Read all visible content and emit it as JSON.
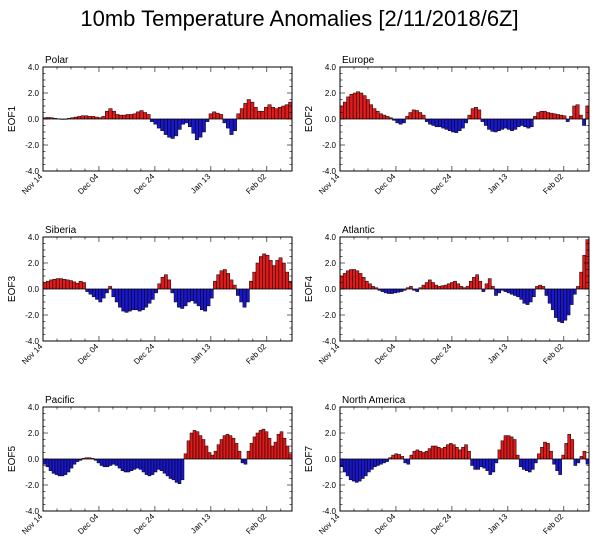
{
  "title": "10mb Temperature Anomalies [2/11/2018/6Z]",
  "colors": {
    "positive": "#e01b1b",
    "negative": "#1a17c8",
    "axis": "#000000"
  },
  "chart_data": [
    {
      "type": "bar",
      "title": "Polar",
      "ylabel": "EOF1",
      "ylim": [
        -4,
        4
      ],
      "yticks": [
        "4.0",
        "2.0",
        "0.0",
        "-2.0",
        "-4.0"
      ],
      "xticks": [
        "Nov 14",
        "Dec 04",
        "Dec 24",
        "Jan 13",
        "Feb 02"
      ],
      "values": [
        0.1,
        0.12,
        0.1,
        0.05,
        0.02,
        0.0,
        0.0,
        0.05,
        0.1,
        0.15,
        0.2,
        0.25,
        0.25,
        0.2,
        0.2,
        0.15,
        0.1,
        0.2,
        0.6,
        0.8,
        0.6,
        0.35,
        0.3,
        0.3,
        0.35,
        0.35,
        0.4,
        0.55,
        0.65,
        0.5,
        0.35,
        -0.2,
        -0.4,
        -0.7,
        -0.9,
        -1.2,
        -1.4,
        -1.5,
        -1.3,
        -0.8,
        -0.4,
        -0.3,
        -0.6,
        -1.1,
        -1.6,
        -1.4,
        -1.0,
        -0.2,
        0.4,
        0.55,
        0.45,
        0.35,
        -0.3,
        -0.7,
        -1.2,
        -0.9,
        0.4,
        0.8,
        1.2,
        1.5,
        1.3,
        0.9,
        0.6,
        0.6,
        0.9,
        1.1,
        0.9,
        0.8,
        0.9,
        1.0,
        1.1,
        1.3
      ]
    },
    {
      "type": "bar",
      "title": "Europe",
      "ylabel": "EOF2",
      "ylim": [
        -4,
        4
      ],
      "yticks": [
        "4.0",
        "2.0",
        "0.0",
        "-2.0",
        "-4.0"
      ],
      "xticks": [
        "Nov 14",
        "Dec 04",
        "Dec 24",
        "Jan 13",
        "Feb 02"
      ],
      "values": [
        1.0,
        1.3,
        1.7,
        1.9,
        2.0,
        2.1,
        2.0,
        1.8,
        1.5,
        1.1,
        0.8,
        0.6,
        0.4,
        0.3,
        0.2,
        0.1,
        -0.1,
        -0.3,
        -0.4,
        -0.3,
        0.2,
        0.5,
        0.7,
        0.65,
        0.5,
        0.3,
        -0.2,
        -0.4,
        -0.5,
        -0.6,
        -0.6,
        -0.7,
        -0.8,
        -0.9,
        -1.0,
        -1.05,
        -0.9,
        -0.7,
        -0.3,
        0.3,
        0.8,
        0.9,
        0.7,
        -0.2,
        -0.5,
        -0.8,
        -0.95,
        -1.0,
        -0.9,
        -0.8,
        -0.7,
        -0.8,
        -0.9,
        -0.8,
        -0.6,
        -0.5,
        -0.6,
        -0.7,
        -0.6,
        0.2,
        0.5,
        0.6,
        0.6,
        0.5,
        0.45,
        0.4,
        0.35,
        0.3,
        0.25,
        -0.2,
        0.2,
        1.0,
        1.1,
        0.3,
        -0.5,
        1.0
      ]
    },
    {
      "type": "bar",
      "title": "Siberia",
      "ylabel": "EOF3",
      "ylim": [
        -4,
        4
      ],
      "yticks": [
        "4.0",
        "2.0",
        "0.0",
        "-2.0",
        "-4.0"
      ],
      "xticks": [
        "Nov 14",
        "Dec 04",
        "Dec 24",
        "Jan 13",
        "Feb 02"
      ],
      "values": [
        0.5,
        0.6,
        0.7,
        0.75,
        0.8,
        0.8,
        0.75,
        0.7,
        0.65,
        0.55,
        0.45,
        0.6,
        0.5,
        -0.2,
        -0.4,
        -0.6,
        -0.8,
        -1.0,
        -0.7,
        -0.3,
        0.2,
        -0.6,
        -1.0,
        -1.4,
        -1.7,
        -1.8,
        -1.7,
        -1.6,
        -1.6,
        -1.7,
        -1.6,
        -1.4,
        -1.1,
        -0.8,
        -0.3,
        0.4,
        0.9,
        1.1,
        0.7,
        -0.3,
        -1.0,
        -1.4,
        -1.5,
        -1.3,
        -1.0,
        -0.9,
        -1.1,
        -1.3,
        -1.6,
        -1.7,
        -1.3,
        -0.7,
        0.6,
        1.1,
        1.4,
        1.5,
        1.2,
        0.7,
        0.3,
        -0.5,
        -1.0,
        -1.4,
        -1.0,
        0.6,
        1.3,
        2.0,
        2.5,
        2.7,
        2.6,
        2.2,
        1.8,
        2.2,
        2.4,
        2.0,
        1.3,
        0.6
      ]
    },
    {
      "type": "bar",
      "title": "Atlantic",
      "ylabel": "EOF4",
      "ylim": [
        -4,
        4
      ],
      "yticks": [
        "4.0",
        "2.0",
        "0.0",
        "-2.0",
        "-4.0"
      ],
      "xticks": [
        "Nov 14",
        "Dec 04",
        "Dec 24",
        "Jan 13",
        "Feb 02"
      ],
      "values": [
        1.0,
        1.2,
        1.4,
        1.5,
        1.5,
        1.4,
        1.2,
        0.9,
        0.6,
        0.4,
        0.2,
        0.1,
        -0.1,
        -0.2,
        -0.3,
        -0.35,
        -0.35,
        -0.3,
        -0.25,
        -0.2,
        -0.1,
        0.1,
        0.2,
        -0.1,
        -0.2,
        0.1,
        0.3,
        0.5,
        0.7,
        0.5,
        0.3,
        0.2,
        0.25,
        0.3,
        0.4,
        0.5,
        0.6,
        0.4,
        0.2,
        0.1,
        0.2,
        0.6,
        0.9,
        1.1,
        0.6,
        -0.2,
        0.4,
        0.8,
        0.2,
        -0.5,
        -0.3,
        -0.1,
        -0.2,
        -0.3,
        -0.4,
        -0.5,
        -0.6,
        -0.8,
        -1.1,
        -1.2,
        -1.0,
        -0.6,
        0.2,
        0.3,
        0.2,
        -0.5,
        -1.1,
        -1.6,
        -2.2,
        -2.5,
        -2.6,
        -2.4,
        -2.0,
        -1.2,
        -0.4,
        0.2,
        1.3,
        2.6,
        3.8
      ]
    },
    {
      "type": "bar",
      "title": "Pacific",
      "ylabel": "EOF5",
      "ylim": [
        -4,
        4
      ],
      "yticks": [
        "4.0",
        "2.0",
        "0.0",
        "-2.0",
        "-4.0"
      ],
      "xticks": [
        "Nov 14",
        "Dec 04",
        "Dec 24",
        "Jan 13",
        "Feb 02"
      ],
      "values": [
        -0.4,
        -0.6,
        -0.9,
        -1.1,
        -1.2,
        -1.3,
        -1.3,
        -1.2,
        -1.0,
        -0.7,
        -0.4,
        -0.2,
        -0.1,
        0.05,
        0.1,
        0.1,
        0.05,
        -0.1,
        -0.3,
        -0.5,
        -0.6,
        -0.6,
        -0.5,
        -0.4,
        -0.5,
        -0.7,
        -0.9,
        -1.0,
        -1.0,
        -0.9,
        -0.8,
        -0.7,
        -0.8,
        -1.0,
        -1.2,
        -1.3,
        -1.2,
        -1.0,
        -0.8,
        -0.9,
        -1.1,
        -1.3,
        -1.5,
        -1.6,
        -1.8,
        -1.9,
        -1.6,
        0.4,
        1.4,
        2.0,
        2.2,
        2.1,
        1.8,
        1.5,
        1.0,
        0.5,
        0.3,
        0.6,
        1.1,
        1.5,
        1.8,
        1.9,
        1.8,
        1.6,
        1.2,
        0.6,
        -0.3,
        -0.4,
        0.6,
        1.2,
        1.7,
        2.0,
        2.2,
        2.3,
        2.1,
        1.6,
        1.0,
        1.3,
        1.9,
        2.1,
        1.6,
        1.0,
        0.4
      ]
    },
    {
      "type": "bar",
      "title": "North America",
      "ylabel": "EOF7",
      "ylim": [
        -4,
        4
      ],
      "yticks": [
        "4.0",
        "2.0",
        "0.0",
        "-2.0",
        "-4.0"
      ],
      "xticks": [
        "Nov 14",
        "Dec 04",
        "Dec 24",
        "Jan 13",
        "Feb 02"
      ],
      "values": [
        -0.6,
        -1.0,
        -1.3,
        -1.6,
        -1.7,
        -1.8,
        -1.7,
        -1.5,
        -1.3,
        -1.0,
        -0.8,
        -0.6,
        -0.5,
        -0.4,
        -0.3,
        -0.2,
        0.1,
        0.3,
        0.4,
        0.35,
        0.2,
        -0.3,
        -0.4,
        0.3,
        0.6,
        0.7,
        0.6,
        0.5,
        0.6,
        0.8,
        1.0,
        1.0,
        0.9,
        0.8,
        0.9,
        1.1,
        1.2,
        1.1,
        0.9,
        0.7,
        0.9,
        1.1,
        0.6,
        -0.5,
        -0.8,
        -0.8,
        -0.6,
        -0.7,
        -0.9,
        -1.2,
        -1.0,
        -0.3,
        0.7,
        1.4,
        1.8,
        1.8,
        1.7,
        1.5,
        0.3,
        -0.6,
        -0.8,
        -0.9,
        -1.0,
        -0.8,
        -0.3,
        0.4,
        0.9,
        1.3,
        1.2,
        0.6,
        -0.4,
        -0.9,
        -1.2,
        0.3,
        1.2,
        1.9,
        1.5,
        -0.5,
        -0.3,
        0.2,
        0.6,
        -0.4
      ]
    }
  ]
}
